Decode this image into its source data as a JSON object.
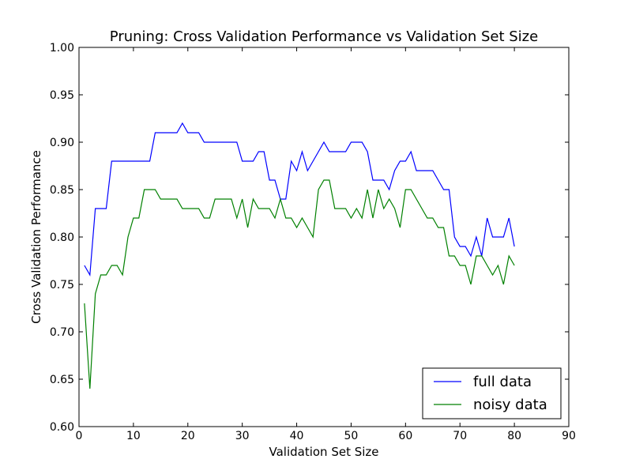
{
  "chart_data": {
    "type": "line",
    "title": "Pruning: Cross Validation Performance vs Validation Set Size",
    "xlabel": "Validation Set Size",
    "ylabel": "Cross Validation Performance",
    "xlim": [
      0,
      90
    ],
    "ylim": [
      0.6,
      1.0
    ],
    "xticks": [
      0,
      10,
      20,
      30,
      40,
      50,
      60,
      70,
      80,
      90
    ],
    "yticks": [
      0.6,
      0.65,
      0.7,
      0.75,
      0.8,
      0.85,
      0.9,
      0.95,
      1.0
    ],
    "xtick_labels": [
      "0",
      "10",
      "20",
      "30",
      "40",
      "50",
      "60",
      "70",
      "80",
      "90"
    ],
    "ytick_labels": [
      "0.60",
      "0.65",
      "0.70",
      "0.75",
      "0.80",
      "0.85",
      "0.90",
      "0.95",
      "1.00"
    ],
    "grid": false,
    "legend_position": "lower-right",
    "x": [
      1,
      2,
      3,
      4,
      5,
      6,
      7,
      8,
      9,
      10,
      11,
      12,
      13,
      14,
      15,
      16,
      17,
      18,
      19,
      20,
      21,
      22,
      23,
      24,
      25,
      26,
      27,
      28,
      29,
      30,
      31,
      32,
      33,
      34,
      35,
      36,
      37,
      38,
      39,
      40,
      41,
      42,
      43,
      44,
      45,
      46,
      47,
      48,
      49,
      50,
      51,
      52,
      53,
      54,
      55,
      56,
      57,
      58,
      59,
      60,
      61,
      62,
      63,
      64,
      65,
      66,
      67,
      68,
      69,
      70,
      71,
      72,
      73,
      74,
      75,
      76,
      77,
      78,
      79,
      80
    ],
    "series": [
      {
        "name": "full data",
        "color": "#0000ff",
        "values": [
          0.77,
          0.76,
          0.83,
          0.83,
          0.83,
          0.88,
          0.88,
          0.88,
          0.88,
          0.88,
          0.88,
          0.88,
          0.88,
          0.91,
          0.91,
          0.91,
          0.91,
          0.91,
          0.92,
          0.91,
          0.91,
          0.91,
          0.9,
          0.9,
          0.9,
          0.9,
          0.9,
          0.9,
          0.9,
          0.88,
          0.88,
          0.88,
          0.89,
          0.89,
          0.86,
          0.86,
          0.84,
          0.84,
          0.88,
          0.87,
          0.89,
          0.87,
          0.88,
          0.89,
          0.9,
          0.89,
          0.89,
          0.89,
          0.89,
          0.9,
          0.9,
          0.9,
          0.89,
          0.86,
          0.86,
          0.86,
          0.85,
          0.87,
          0.88,
          0.88,
          0.89,
          0.87,
          0.87,
          0.87,
          0.87,
          0.86,
          0.85,
          0.85,
          0.8,
          0.79,
          0.79,
          0.78,
          0.8,
          0.78,
          0.82,
          0.8,
          0.8,
          0.8,
          0.82,
          0.79
        ]
      },
      {
        "name": "noisy data",
        "color": "#008000",
        "values": [
          0.73,
          0.64,
          0.74,
          0.76,
          0.76,
          0.77,
          0.77,
          0.76,
          0.8,
          0.82,
          0.82,
          0.85,
          0.85,
          0.85,
          0.84,
          0.84,
          0.84,
          0.84,
          0.83,
          0.83,
          0.83,
          0.83,
          0.82,
          0.82,
          0.84,
          0.84,
          0.84,
          0.84,
          0.82,
          0.84,
          0.81,
          0.84,
          0.83,
          0.83,
          0.83,
          0.82,
          0.84,
          0.82,
          0.82,
          0.81,
          0.82,
          0.81,
          0.8,
          0.85,
          0.86,
          0.86,
          0.83,
          0.83,
          0.83,
          0.82,
          0.83,
          0.82,
          0.85,
          0.82,
          0.85,
          0.83,
          0.84,
          0.83,
          0.81,
          0.85,
          0.85,
          0.84,
          0.83,
          0.82,
          0.82,
          0.81,
          0.81,
          0.78,
          0.78,
          0.77,
          0.77,
          0.75,
          0.78,
          0.78,
          0.77,
          0.76,
          0.77,
          0.75,
          0.78,
          0.77
        ]
      }
    ]
  }
}
